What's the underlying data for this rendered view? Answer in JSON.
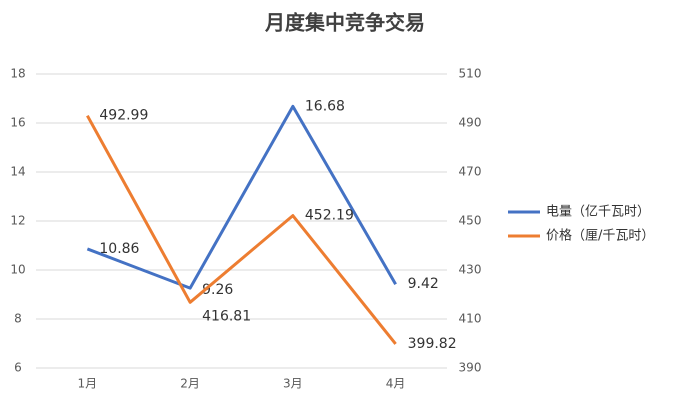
{
  "chart_data": {
    "type": "line",
    "title": "月度集中竞争交易",
    "categories": [
      "1月",
      "2月",
      "3月",
      "4月"
    ],
    "series": [
      {
        "name": "电量（亿千瓦时）",
        "color": "#4472c4",
        "values": [
          10.86,
          9.26,
          16.68,
          9.42
        ]
      },
      {
        "name": "价格（厘/千瓦时）",
        "color": "#ed7d31",
        "axis": "y2",
        "values": [
          492.99,
          416.81,
          452.19,
          399.82
        ]
      }
    ],
    "ylim": [
      6,
      18
    ],
    "yticks": [
      6,
      8,
      10,
      12,
      14,
      16,
      18
    ],
    "y2lim": [
      390,
      510
    ],
    "y2ticks": [
      390,
      410,
      430,
      450,
      470,
      490,
      510
    ],
    "grid": true,
    "legend": "right"
  }
}
